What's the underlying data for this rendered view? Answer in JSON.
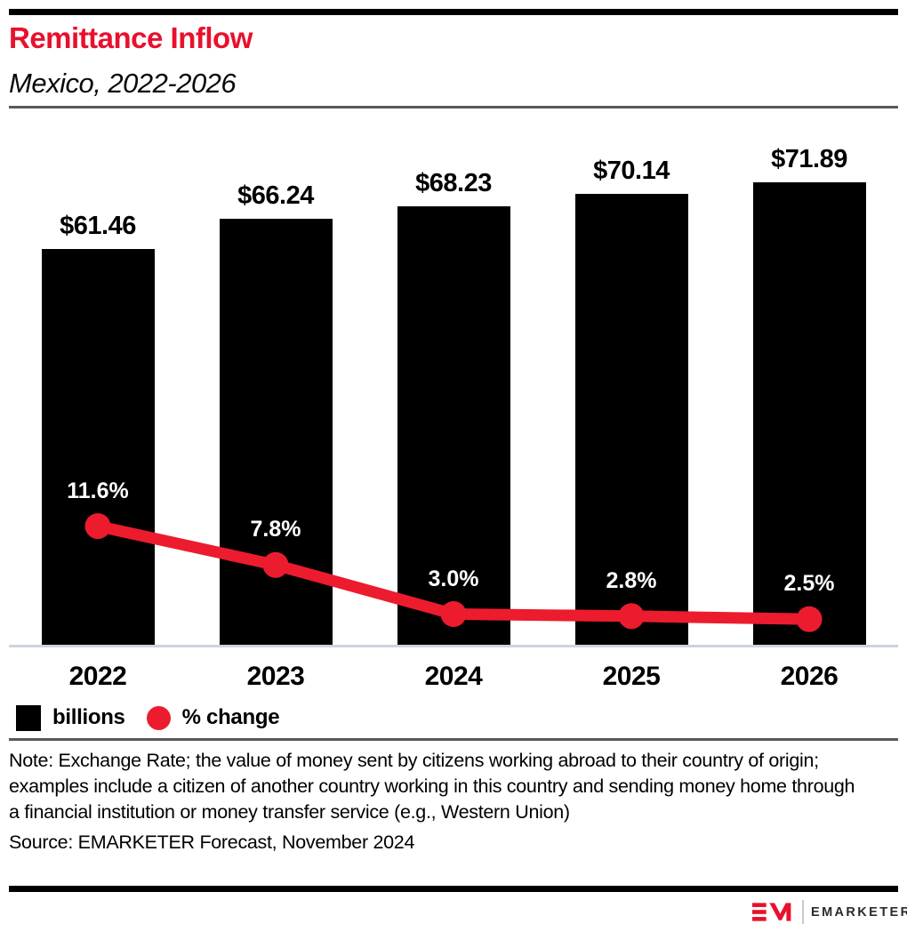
{
  "header": {
    "title": "Remittance Inflow",
    "subtitle": "Mexico, 2022-2026",
    "title_color": "#e8112d"
  },
  "chart_data": {
    "type": "bar",
    "subtype": "bar+line combo, no y-axis, value labels on points",
    "title": "Remittance Inflow",
    "subtitle": "Mexico, 2022-2026",
    "categories": [
      "2022",
      "2023",
      "2024",
      "2025",
      "2026"
    ],
    "series": [
      {
        "name": "billions",
        "type": "bar",
        "values": [
          61.46,
          66.24,
          68.23,
          70.14,
          71.89
        ],
        "labels": [
          "$61.46",
          "$66.24",
          "$68.23",
          "$70.14",
          "$71.89"
        ],
        "color": "#000000",
        "label_color": "#000000"
      },
      {
        "name": "% change",
        "type": "line",
        "values": [
          11.6,
          7.8,
          3.0,
          2.8,
          2.5
        ],
        "labels": [
          "11.6%",
          "7.8%",
          "3.0%",
          "2.8%",
          "2.5%"
        ],
        "color": "#ed1b2e",
        "label_color": "#ffffff"
      }
    ],
    "xlabel": "",
    "ylabel": "",
    "grid": false,
    "legend_position": "bottom-left",
    "baseline_color": "#ccd3e0"
  },
  "legend": {
    "items": [
      {
        "label": "billions",
        "swatch": "square",
        "color": "#000000"
      },
      {
        "label": "% change",
        "swatch": "circle",
        "color": "#ed1b2e"
      }
    ]
  },
  "footer": {
    "note": "Note: Exchange Rate; the value of money sent by citizens working abroad to their country of origin; examples include a citizen of another country working in this country and sending money home through a financial institution or money transfer service (e.g., Western Union)",
    "source": "Source: EMARKETER Forecast, November 2024"
  },
  "brand": {
    "wordmark": "EMARKETER",
    "logo_color": "#e8112d"
  }
}
